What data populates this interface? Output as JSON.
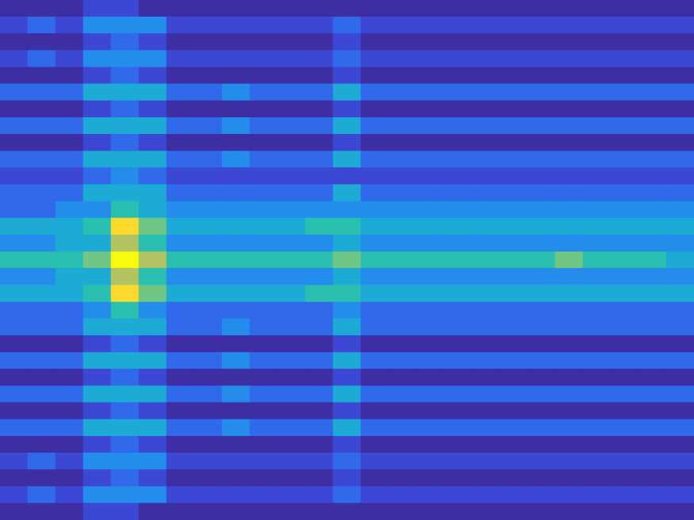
{
  "chart_data": {
    "type": "heatmap",
    "tick_labels": false,
    "zlim": [
      0,
      10
    ],
    "cells": [
      [
        0,
        0,
        0,
        1,
        1,
        0,
        0,
        0,
        0,
        0,
        0,
        0,
        0,
        0,
        0,
        0,
        0,
        0,
        0,
        0,
        0,
        0,
        0,
        0,
        0
      ],
      [
        1,
        2,
        1,
        3,
        3,
        3,
        1,
        1,
        1,
        1,
        1,
        1,
        2,
        1,
        1,
        1,
        1,
        1,
        1,
        1,
        1,
        1,
        1,
        1,
        1
      ],
      [
        0,
        0,
        0,
        1,
        2,
        1,
        0,
        0,
        0,
        0,
        0,
        0,
        1,
        0,
        0,
        0,
        0,
        0,
        0,
        0,
        0,
        0,
        0,
        0,
        0
      ],
      [
        1,
        2,
        1,
        3,
        3,
        3,
        1,
        1,
        1,
        1,
        1,
        1,
        2,
        1,
        1,
        1,
        1,
        1,
        1,
        1,
        1,
        1,
        1,
        1,
        1
      ],
      [
        0,
        0,
        0,
        1,
        2,
        1,
        0,
        0,
        0,
        0,
        0,
        0,
        1,
        0,
        0,
        0,
        0,
        0,
        0,
        0,
        0,
        0,
        0,
        0,
        0
      ],
      [
        2,
        2,
        2,
        4,
        4,
        4,
        2,
        2,
        3,
        2,
        2,
        2,
        4,
        2,
        2,
        2,
        2,
        2,
        2,
        2,
        2,
        2,
        2,
        2,
        2
      ],
      [
        0,
        0,
        0,
        1,
        2,
        1,
        0,
        0,
        0,
        0,
        0,
        0,
        1,
        0,
        0,
        0,
        0,
        0,
        0,
        0,
        0,
        0,
        0,
        0,
        0
      ],
      [
        2,
        2,
        2,
        4,
        4,
        4,
        2,
        2,
        3,
        2,
        2,
        2,
        4,
        2,
        2,
        2,
        2,
        2,
        2,
        2,
        2,
        2,
        2,
        2,
        2
      ],
      [
        0,
        0,
        0,
        1,
        2,
        1,
        0,
        0,
        0,
        0,
        0,
        0,
        1,
        0,
        0,
        0,
        0,
        0,
        0,
        0,
        0,
        0,
        0,
        0,
        0
      ],
      [
        2,
        2,
        2,
        4,
        4,
        4,
        2,
        2,
        3,
        2,
        2,
        2,
        4,
        2,
        2,
        2,
        2,
        2,
        2,
        2,
        2,
        2,
        2,
        2,
        2
      ],
      [
        1,
        1,
        1,
        2,
        3,
        2,
        1,
        1,
        1,
        1,
        1,
        1,
        1,
        1,
        1,
        1,
        1,
        1,
        1,
        1,
        1,
        1,
        1,
        1,
        1
      ],
      [
        2,
        2,
        2,
        4,
        4,
        4,
        2,
        2,
        2,
        2,
        2,
        2,
        4,
        2,
        2,
        2,
        2,
        2,
        2,
        2,
        2,
        2,
        2,
        2,
        2
      ],
      [
        2,
        2,
        3,
        3,
        5,
        4,
        3,
        3,
        3,
        3,
        3,
        3,
        3,
        3,
        3,
        3,
        3,
        3,
        3,
        3,
        3,
        3,
        3,
        3,
        3
      ],
      [
        4,
        4,
        4,
        5,
        9,
        6,
        4,
        4,
        4,
        4,
        4,
        5,
        5,
        4,
        4,
        4,
        4,
        4,
        4,
        4,
        4,
        4,
        4,
        4,
        4
      ],
      [
        3,
        3,
        4,
        4,
        7,
        5,
        3,
        3,
        3,
        3,
        3,
        3,
        4,
        3,
        3,
        3,
        3,
        3,
        3,
        3,
        3,
        3,
        3,
        3,
        3
      ],
      [
        5,
        5,
        5,
        6,
        10,
        7,
        5,
        5,
        5,
        5,
        5,
        5,
        6,
        5,
        5,
        5,
        5,
        5,
        5,
        5,
        6,
        5,
        5,
        5,
        4
      ],
      [
        3,
        3,
        4,
        4,
        7,
        5,
        3,
        3,
        3,
        3,
        3,
        3,
        4,
        3,
        3,
        3,
        3,
        3,
        3,
        3,
        3,
        3,
        3,
        3,
        3
      ],
      [
        4,
        4,
        4,
        5,
        9,
        6,
        4,
        4,
        4,
        4,
        4,
        5,
        5,
        4,
        4,
        4,
        4,
        4,
        4,
        4,
        4,
        4,
        4,
        4,
        4
      ],
      [
        2,
        2,
        2,
        3,
        5,
        3,
        2,
        2,
        2,
        2,
        2,
        2,
        3,
        2,
        2,
        2,
        2,
        2,
        2,
        2,
        2,
        2,
        2,
        2,
        2
      ],
      [
        2,
        2,
        2,
        4,
        4,
        4,
        2,
        2,
        3,
        2,
        2,
        2,
        4,
        2,
        2,
        2,
        2,
        2,
        2,
        2,
        2,
        2,
        2,
        2,
        2
      ],
      [
        0,
        0,
        0,
        1,
        2,
        1,
        0,
        0,
        0,
        0,
        0,
        0,
        1,
        0,
        0,
        0,
        0,
        0,
        0,
        0,
        0,
        0,
        0,
        0,
        0
      ],
      [
        2,
        2,
        2,
        4,
        4,
        4,
        2,
        2,
        3,
        2,
        2,
        2,
        4,
        2,
        2,
        2,
        2,
        2,
        2,
        2,
        2,
        2,
        2,
        2,
        2
      ],
      [
        0,
        0,
        0,
        1,
        2,
        1,
        0,
        0,
        0,
        0,
        0,
        0,
        1,
        0,
        0,
        0,
        0,
        0,
        0,
        0,
        0,
        0,
        0,
        0,
        0
      ],
      [
        2,
        2,
        2,
        4,
        4,
        4,
        2,
        2,
        3,
        2,
        2,
        2,
        4,
        2,
        2,
        2,
        2,
        2,
        2,
        2,
        2,
        2,
        2,
        2,
        2
      ],
      [
        0,
        0,
        0,
        1,
        2,
        1,
        0,
        0,
        0,
        0,
        0,
        0,
        1,
        0,
        0,
        0,
        0,
        0,
        0,
        0,
        0,
        0,
        0,
        0,
        0
      ],
      [
        2,
        2,
        2,
        4,
        4,
        4,
        2,
        2,
        3,
        2,
        2,
        2,
        4,
        2,
        2,
        2,
        2,
        2,
        2,
        2,
        2,
        2,
        2,
        2,
        2
      ],
      [
        0,
        0,
        0,
        1,
        2,
        1,
        0,
        0,
        0,
        0,
        0,
        0,
        1,
        0,
        0,
        0,
        0,
        0,
        0,
        0,
        0,
        0,
        0,
        0,
        0
      ],
      [
        1,
        2,
        1,
        3,
        3,
        3,
        1,
        1,
        1,
        1,
        1,
        1,
        2,
        1,
        1,
        1,
        1,
        1,
        1,
        1,
        1,
        1,
        1,
        1,
        1
      ],
      [
        0,
        0,
        0,
        1,
        2,
        1,
        0,
        0,
        0,
        0,
        0,
        0,
        1,
        0,
        0,
        0,
        0,
        0,
        0,
        0,
        0,
        0,
        0,
        0,
        0
      ],
      [
        1,
        2,
        1,
        3,
        3,
        3,
        1,
        1,
        1,
        1,
        1,
        1,
        2,
        1,
        1,
        1,
        1,
        1,
        1,
        1,
        1,
        1,
        1,
        1,
        1
      ],
      [
        0,
        0,
        0,
        1,
        1,
        0,
        0,
        0,
        0,
        0,
        0,
        0,
        0,
        0,
        0,
        0,
        0,
        0,
        0,
        0,
        0,
        0,
        0,
        0,
        0
      ]
    ]
  }
}
